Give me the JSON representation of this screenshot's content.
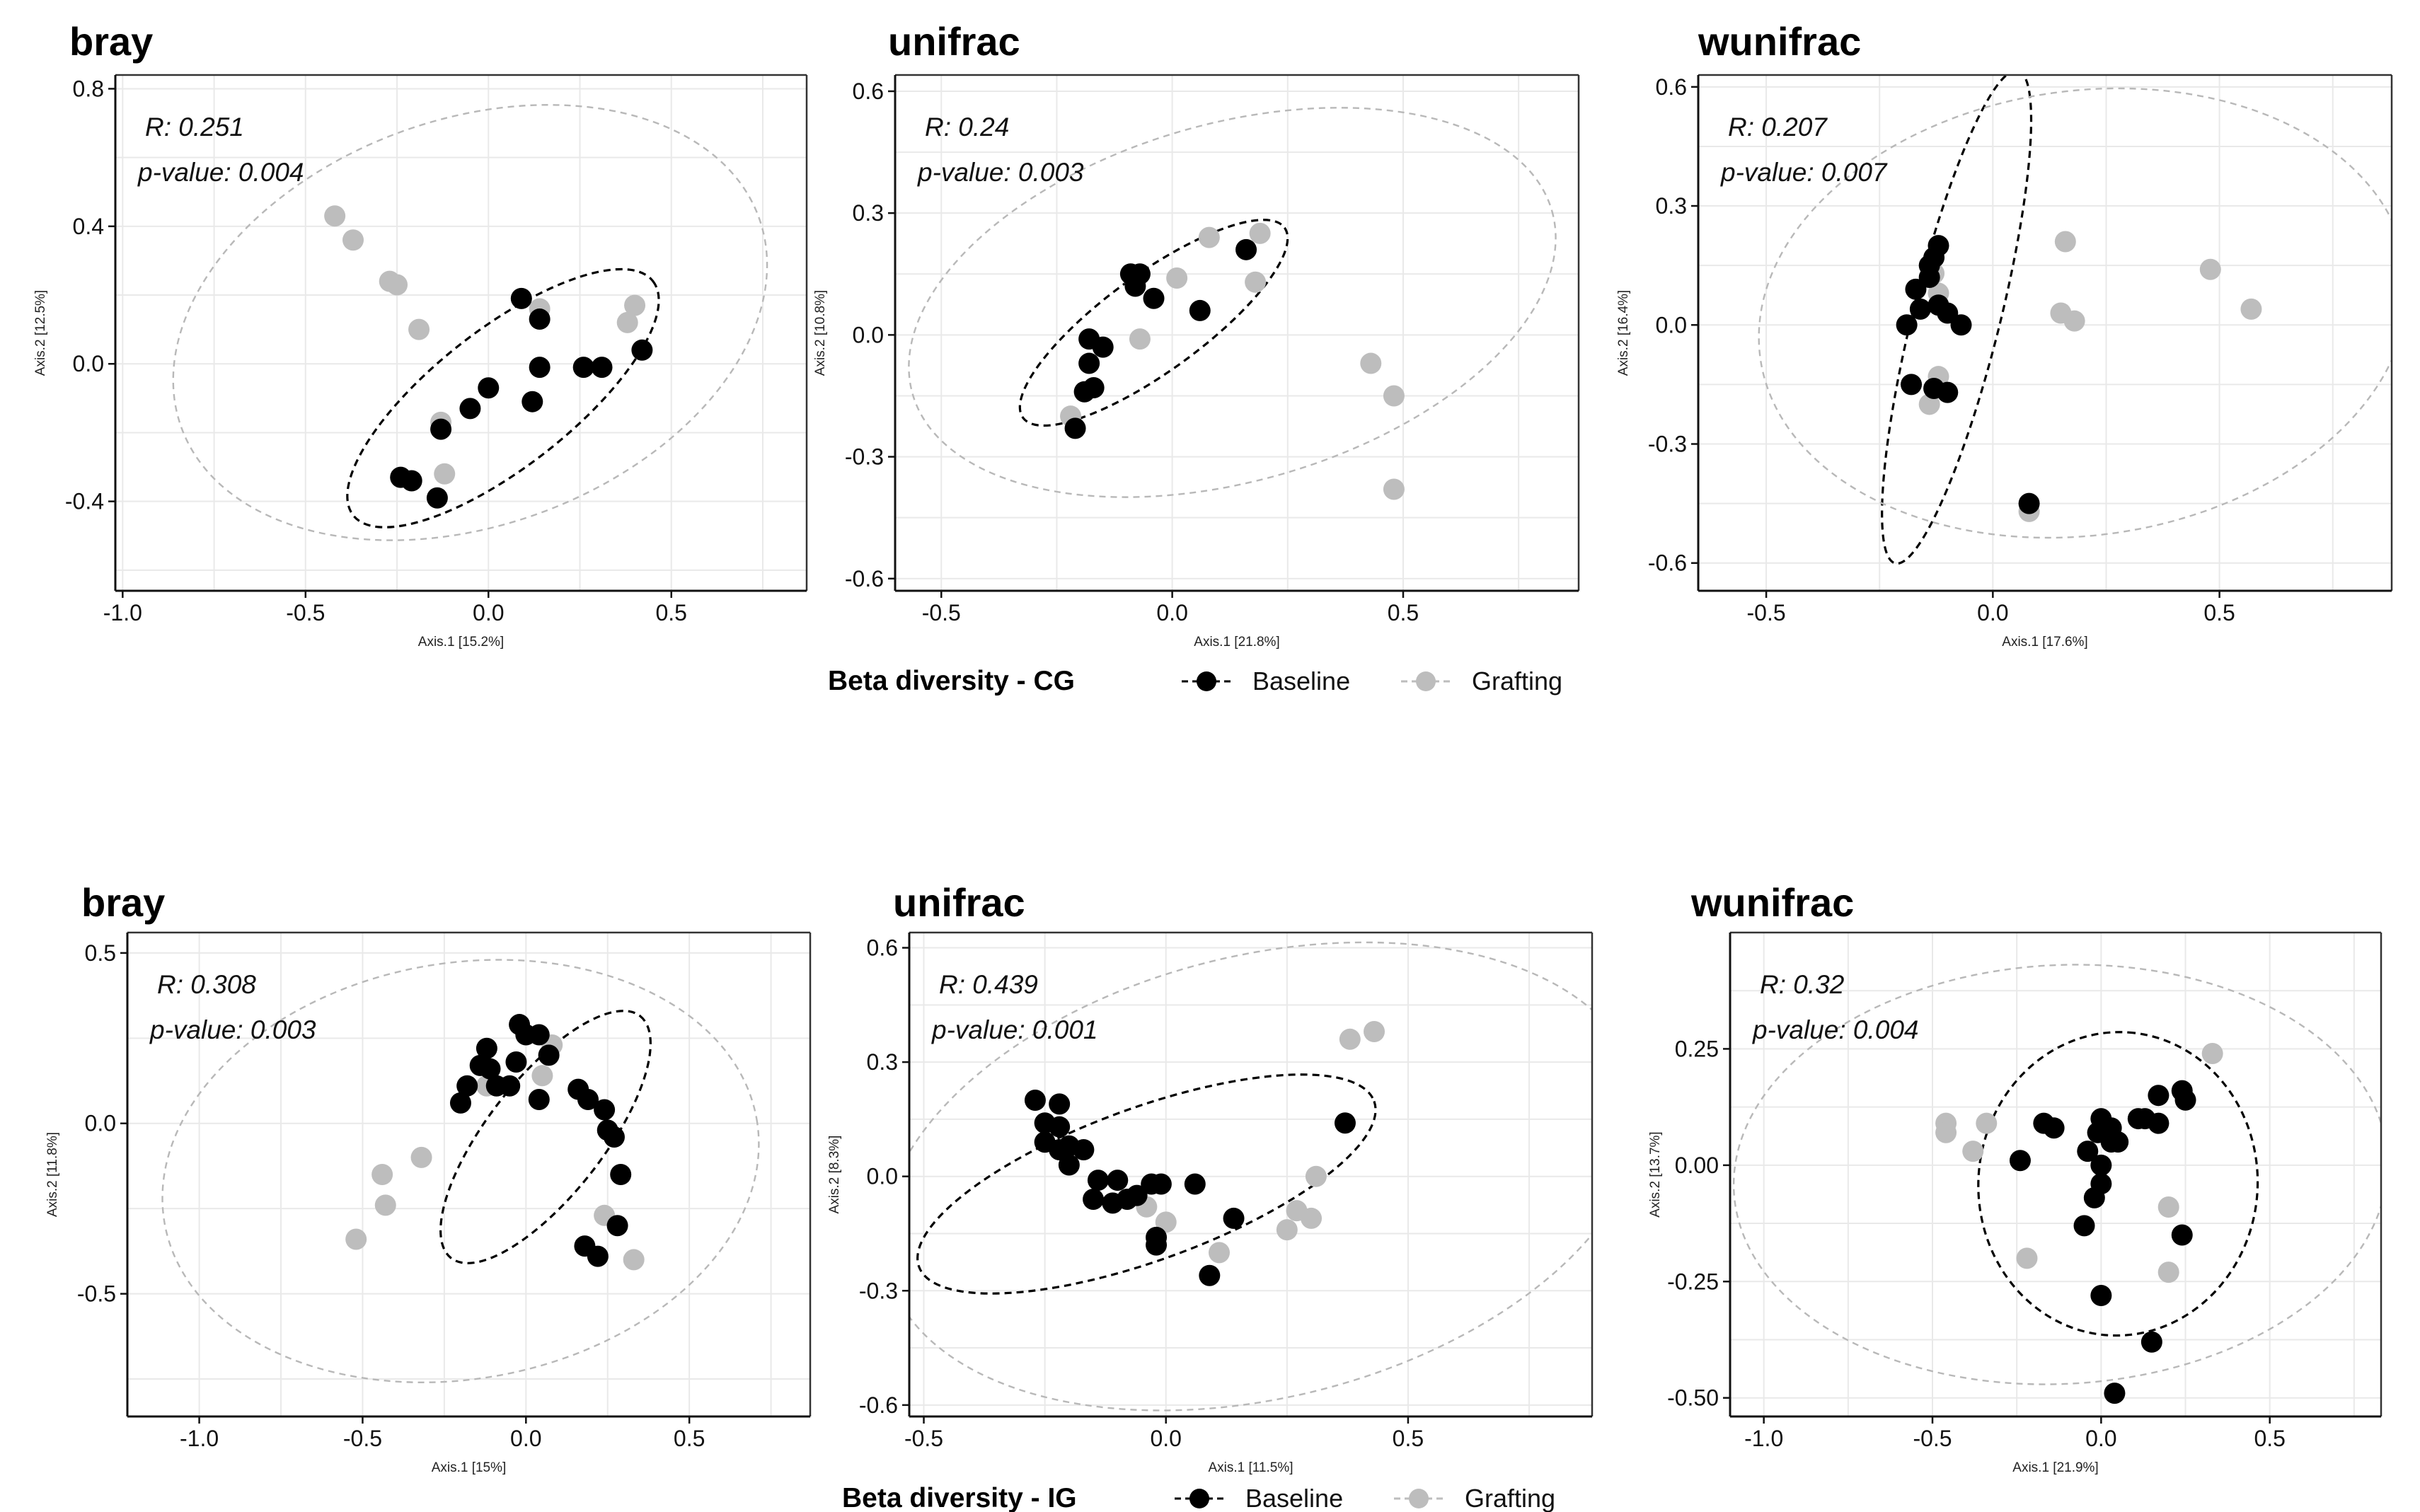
{
  "colors": {
    "baseline": "#000000",
    "grafting": "#bdbdbd",
    "grid": "#e9e9e9",
    "ellipse_grafting": "#b8b8b8"
  },
  "legends": [
    {
      "title": "Beta diversity - CG",
      "items": [
        "Baseline",
        "Grafting"
      ]
    },
    {
      "title": "Beta diversity - IG",
      "items": [
        "Baseline",
        "Grafting"
      ]
    }
  ],
  "chart_data": [
    {
      "type": "scatter",
      "title": "bray",
      "xlabel": "Axis.1  [15.2%]",
      "ylabel": "Axis.2  [12.5%]",
      "xlim": [
        -1.02,
        0.87
      ],
      "ylim": [
        -0.66,
        0.84
      ],
      "xticks": [
        -1.0,
        -0.5,
        0.0,
        0.5
      ],
      "xtick_labels": [
        "-1.0",
        "-0.5",
        "0.0",
        "0.5"
      ],
      "yticks": [
        -0.4,
        0.0,
        0.4,
        0.8
      ],
      "ytick_labels": [
        "-0.4",
        "0.0",
        "0.4",
        "0.8"
      ],
      "annotation": {
        "r": "R: 0.251",
        "p": "p-value: 0.004"
      },
      "series": [
        {
          "name": "Baseline",
          "points": [
            [
              0.09,
              0.19
            ],
            [
              0.14,
              0.13
            ],
            [
              0.14,
              -0.01
            ],
            [
              0.42,
              0.04
            ],
            [
              0.26,
              -0.01
            ],
            [
              0.31,
              -0.01
            ],
            [
              0.0,
              -0.07
            ],
            [
              0.12,
              -0.11
            ],
            [
              -0.05,
              -0.13
            ],
            [
              -0.13,
              -0.19
            ],
            [
              -0.24,
              -0.33
            ],
            [
              -0.21,
              -0.34
            ],
            [
              -0.14,
              -0.39
            ]
          ]
        },
        {
          "name": "Grafting",
          "points": [
            [
              -0.42,
              0.43
            ],
            [
              -0.37,
              0.36
            ],
            [
              -0.27,
              0.24
            ],
            [
              -0.25,
              0.23
            ],
            [
              -0.19,
              0.1
            ],
            [
              0.14,
              0.16
            ],
            [
              0.4,
              0.17
            ],
            [
              0.38,
              0.12
            ],
            [
              -0.13,
              -0.17
            ],
            [
              -0.12,
              -0.32
            ]
          ]
        }
      ],
      "ellipses": [
        {
          "group": "Baseline",
          "cx": 0.04,
          "cy": -0.1,
          "rx": 0.52,
          "ry": 0.2,
          "angle_deg": -38
        },
        {
          "group": "Grafting",
          "cx": -0.05,
          "cy": 0.12,
          "rx": 0.84,
          "ry": 0.59,
          "angle_deg": -20
        }
      ]
    },
    {
      "type": "scatter",
      "title": "unifrac",
      "xlabel": "Axis.1  [21.8%]",
      "ylabel": "Axis.2  [10.8%]",
      "xlim": [
        -0.6,
        0.88
      ],
      "ylim": [
        -0.63,
        0.64
      ],
      "xticks": [
        -0.5,
        0.0,
        0.5
      ],
      "xtick_labels": [
        "-0.5",
        "0.0",
        "0.5"
      ],
      "yticks": [
        -0.6,
        -0.3,
        0.0,
        0.3,
        0.6
      ],
      "ytick_labels": [
        "-0.6",
        "-0.3",
        "0.0",
        "0.3",
        "0.6"
      ],
      "annotation": {
        "r": "R: 0.24",
        "p": "p-value: 0.003"
      },
      "series": [
        {
          "name": "Baseline",
          "points": [
            [
              -0.09,
              0.15
            ],
            [
              -0.07,
              0.15
            ],
            [
              -0.08,
              0.12
            ],
            [
              -0.04,
              0.09
            ],
            [
              0.06,
              0.06
            ],
            [
              0.16,
              0.21
            ],
            [
              -0.18,
              -0.01
            ],
            [
              -0.15,
              -0.03
            ],
            [
              -0.18,
              -0.07
            ],
            [
              -0.17,
              -0.13
            ],
            [
              -0.19,
              -0.14
            ],
            [
              -0.21,
              -0.23
            ]
          ]
        },
        {
          "name": "Grafting",
          "points": [
            [
              0.08,
              0.24
            ],
            [
              0.19,
              0.25
            ],
            [
              0.01,
              0.14
            ],
            [
              -0.08,
              0.13
            ],
            [
              0.18,
              0.13
            ],
            [
              -0.07,
              -0.01
            ],
            [
              0.43,
              -0.07
            ],
            [
              0.48,
              -0.15
            ],
            [
              0.48,
              -0.38
            ],
            [
              -0.22,
              -0.2
            ]
          ]
        }
      ],
      "ellipses": [
        {
          "group": "Baseline",
          "cx": -0.04,
          "cy": 0.03,
          "rx": 0.35,
          "ry": 0.12,
          "angle_deg": -36
        },
        {
          "group": "Grafting",
          "cx": 0.13,
          "cy": 0.08,
          "rx": 0.72,
          "ry": 0.44,
          "angle_deg": -16
        }
      ]
    },
    {
      "type": "scatter",
      "title": "wunifrac",
      "xlabel": "Axis.1  [17.6%]",
      "ylabel": "Axis.2  [16.4%]",
      "xlim": [
        -0.65,
        0.88
      ],
      "ylim": [
        -0.67,
        0.63
      ],
      "xticks": [
        -0.5,
        0.0,
        0.5
      ],
      "xtick_labels": [
        "-0.5",
        "0.0",
        "0.5"
      ],
      "yticks": [
        -0.6,
        -0.3,
        0.0,
        0.3,
        0.6
      ],
      "ytick_labels": [
        "-0.6",
        "-0.3",
        "0.0",
        "0.3",
        "0.6"
      ],
      "annotation": {
        "r": "R: 0.207",
        "p": "p-value: 0.007"
      },
      "series": [
        {
          "name": "Baseline",
          "points": [
            [
              -0.13,
              0.17
            ],
            [
              -0.12,
              0.2
            ],
            [
              -0.14,
              0.15
            ],
            [
              -0.14,
              0.12
            ],
            [
              -0.17,
              0.09
            ],
            [
              -0.16,
              0.04
            ],
            [
              -0.19,
              0.0
            ],
            [
              -0.1,
              0.03
            ],
            [
              -0.07,
              0.0
            ],
            [
              -0.12,
              0.05
            ],
            [
              -0.18,
              -0.15
            ],
            [
              -0.13,
              -0.16
            ],
            [
              -0.1,
              -0.17
            ],
            [
              0.08,
              -0.45
            ]
          ]
        },
        {
          "name": "Grafting",
          "points": [
            [
              -0.13,
              0.13
            ],
            [
              -0.12,
              0.08
            ],
            [
              0.16,
              0.21
            ],
            [
              0.48,
              0.14
            ],
            [
              0.57,
              0.04
            ],
            [
              0.15,
              0.03
            ],
            [
              0.18,
              0.01
            ],
            [
              -0.12,
              -0.13
            ],
            [
              -0.14,
              -0.2
            ],
            [
              0.08,
              -0.47
            ]
          ]
        }
      ],
      "ellipses": [
        {
          "group": "Baseline",
          "cx": -0.08,
          "cy": 0.02,
          "rx": 0.56,
          "ry": 0.11,
          "angle_deg": -76
        },
        {
          "group": "Grafting",
          "cx": 0.2,
          "cy": 0.03,
          "rx": 0.72,
          "ry": 0.56,
          "angle_deg": -8
        }
      ]
    },
    {
      "type": "scatter",
      "title": "bray",
      "xlabel": "Axis.1  [15%]",
      "ylabel": "Axis.2  [11.8%]",
      "xlim": [
        -1.22,
        0.87
      ],
      "ylim": [
        -0.86,
        0.56
      ],
      "xticks": [
        -1.0,
        -0.5,
        0.0,
        0.5
      ],
      "xtick_labels": [
        "-1.0",
        "-0.5",
        "0.0",
        "0.5"
      ],
      "yticks": [
        -0.5,
        0.0,
        0.5
      ],
      "ytick_labels": [
        "-0.5",
        "0.0",
        "0.5"
      ],
      "annotation": {
        "r": "R: 0.308",
        "p": "p-value: 0.003"
      },
      "series": [
        {
          "name": "Baseline",
          "points": [
            [
              -0.02,
              0.29
            ],
            [
              0.0,
              0.26
            ],
            [
              0.04,
              0.26
            ],
            [
              0.07,
              0.2
            ],
            [
              -0.03,
              0.18
            ],
            [
              -0.12,
              0.22
            ],
            [
              -0.14,
              0.17
            ],
            [
              -0.11,
              0.16
            ],
            [
              -0.09,
              0.11
            ],
            [
              -0.18,
              0.11
            ],
            [
              -0.2,
              0.06
            ],
            [
              -0.05,
              0.11
            ],
            [
              0.04,
              0.07
            ],
            [
              0.16,
              0.1
            ],
            [
              0.19,
              0.07
            ],
            [
              0.24,
              0.04
            ],
            [
              0.25,
              -0.02
            ],
            [
              0.27,
              -0.04
            ],
            [
              0.29,
              -0.15
            ],
            [
              0.28,
              -0.3
            ],
            [
              0.18,
              -0.36
            ],
            [
              0.22,
              -0.39
            ]
          ]
        },
        {
          "name": "Grafting",
          "points": [
            [
              0.08,
              0.23
            ],
            [
              0.05,
              0.14
            ],
            [
              -0.12,
              0.11
            ],
            [
              -0.32,
              -0.1
            ],
            [
              -0.44,
              -0.15
            ],
            [
              -0.43,
              -0.24
            ],
            [
              -0.52,
              -0.34
            ],
            [
              0.24,
              -0.27
            ],
            [
              0.33,
              -0.4
            ]
          ]
        }
      ],
      "ellipses": [
        {
          "group": "Baseline",
          "cx": 0.06,
          "cy": -0.04,
          "rx": 0.47,
          "ry": 0.17,
          "angle_deg": -52
        },
        {
          "group": "Grafting",
          "cx": -0.2,
          "cy": -0.14,
          "rx": 0.92,
          "ry": 0.61,
          "angle_deg": -10
        }
      ]
    },
    {
      "type": "scatter",
      "title": "unifrac",
      "xlabel": "Axis.1  [11.5%]",
      "ylabel": "Axis.2  [8.3%]",
      "xlim": [
        -0.53,
        0.88
      ],
      "ylim": [
        -0.63,
        0.64
      ],
      "xticks": [
        -0.5,
        0.0,
        0.5
      ],
      "xtick_labels": [
        "-0.5",
        "0.0",
        "0.5"
      ],
      "yticks": [
        -0.6,
        -0.3,
        0.0,
        0.3,
        0.6
      ],
      "ytick_labels": [
        "-0.6",
        "-0.3",
        "0.0",
        "0.3",
        "0.6"
      ],
      "annotation": {
        "r": "R: 0.439",
        "p": "p-value: 0.001"
      },
      "series": [
        {
          "name": "Baseline",
          "points": [
            [
              -0.27,
              0.2
            ],
            [
              -0.22,
              0.19
            ],
            [
              -0.25,
              0.14
            ],
            [
              -0.22,
              0.13
            ],
            [
              -0.25,
              0.09
            ],
            [
              -0.22,
              0.07
            ],
            [
              -0.2,
              0.08
            ],
            [
              -0.17,
              0.07
            ],
            [
              -0.2,
              0.03
            ],
            [
              -0.14,
              -0.01
            ],
            [
              -0.1,
              -0.01
            ],
            [
              -0.15,
              -0.06
            ],
            [
              -0.11,
              -0.07
            ],
            [
              -0.08,
              -0.06
            ],
            [
              -0.06,
              -0.05
            ],
            [
              -0.03,
              -0.02
            ],
            [
              -0.01,
              -0.02
            ],
            [
              0.06,
              -0.02
            ],
            [
              0.14,
              -0.11
            ],
            [
              -0.02,
              -0.16
            ],
            [
              -0.02,
              -0.18
            ],
            [
              0.09,
              -0.26
            ],
            [
              0.37,
              0.14
            ]
          ]
        },
        {
          "name": "Grafting",
          "points": [
            [
              0.38,
              0.36
            ],
            [
              0.43,
              0.38
            ],
            [
              0.31,
              0.0
            ],
            [
              0.27,
              -0.09
            ],
            [
              0.3,
              -0.11
            ],
            [
              0.25,
              -0.14
            ],
            [
              0.11,
              -0.2
            ],
            [
              0.0,
              -0.12
            ],
            [
              -0.04,
              -0.08
            ]
          ]
        }
      ],
      "ellipses": [
        {
          "group": "Baseline",
          "cx": -0.04,
          "cy": -0.02,
          "rx": 0.5,
          "ry": 0.2,
          "angle_deg": -20
        },
        {
          "group": "Grafting",
          "cx": 0.2,
          "cy": 0.0,
          "rx": 0.8,
          "ry": 0.58,
          "angle_deg": -14
        }
      ]
    },
    {
      "type": "scatter",
      "title": "wunifrac",
      "xlabel": "Axis.1  [21.9%]",
      "ylabel": "Axis.2  [13.7%]",
      "xlim": [
        -1.1,
        0.83
      ],
      "ylim": [
        -0.54,
        0.5
      ],
      "xticks": [
        -1.0,
        -0.5,
        0.0,
        0.5
      ],
      "xtick_labels": [
        "-1.0",
        "-0.5",
        "0.0",
        "0.5"
      ],
      "yticks": [
        -0.5,
        -0.25,
        0.0,
        0.25
      ],
      "ytick_labels": [
        "-0.50",
        "-0.25",
        "0.00",
        "0.25"
      ],
      "annotation": {
        "r": "R: 0.32",
        "p": "p-value: 0.004"
      },
      "series": [
        {
          "name": "Baseline",
          "points": [
            [
              0.0,
              0.1
            ],
            [
              0.03,
              0.08
            ],
            [
              -0.01,
              0.07
            ],
            [
              0.03,
              0.05
            ],
            [
              0.05,
              0.05
            ],
            [
              0.11,
              0.1
            ],
            [
              0.13,
              0.1
            ],
            [
              0.17,
              0.09
            ],
            [
              0.17,
              0.15
            ],
            [
              0.24,
              0.16
            ],
            [
              0.25,
              0.14
            ],
            [
              -0.17,
              0.09
            ],
            [
              -0.14,
              0.08
            ],
            [
              -0.04,
              0.03
            ],
            [
              0.0,
              0.0
            ],
            [
              0.0,
              -0.04
            ],
            [
              -0.02,
              -0.07
            ],
            [
              -0.24,
              0.01
            ],
            [
              0.24,
              -0.15
            ],
            [
              -0.05,
              -0.13
            ],
            [
              0.0,
              -0.28
            ],
            [
              0.15,
              -0.38
            ],
            [
              0.04,
              -0.49
            ]
          ]
        },
        {
          "name": "Grafting",
          "points": [
            [
              -0.46,
              0.09
            ],
            [
              -0.46,
              0.07
            ],
            [
              -0.34,
              0.09
            ],
            [
              -0.38,
              0.03
            ],
            [
              0.33,
              0.24
            ],
            [
              0.2,
              -0.09
            ],
            [
              0.2,
              -0.23
            ],
            [
              -0.22,
              -0.2
            ]
          ]
        }
      ],
      "ellipses": [
        {
          "group": "Baseline",
          "cx": 0.05,
          "cy": -0.04,
          "rx": 0.45,
          "ry": 0.3,
          "angle_deg": -86
        },
        {
          "group": "Grafting",
          "cx": -0.12,
          "cy": -0.02,
          "rx": 0.97,
          "ry": 0.45,
          "angle_deg": -3
        }
      ]
    }
  ]
}
